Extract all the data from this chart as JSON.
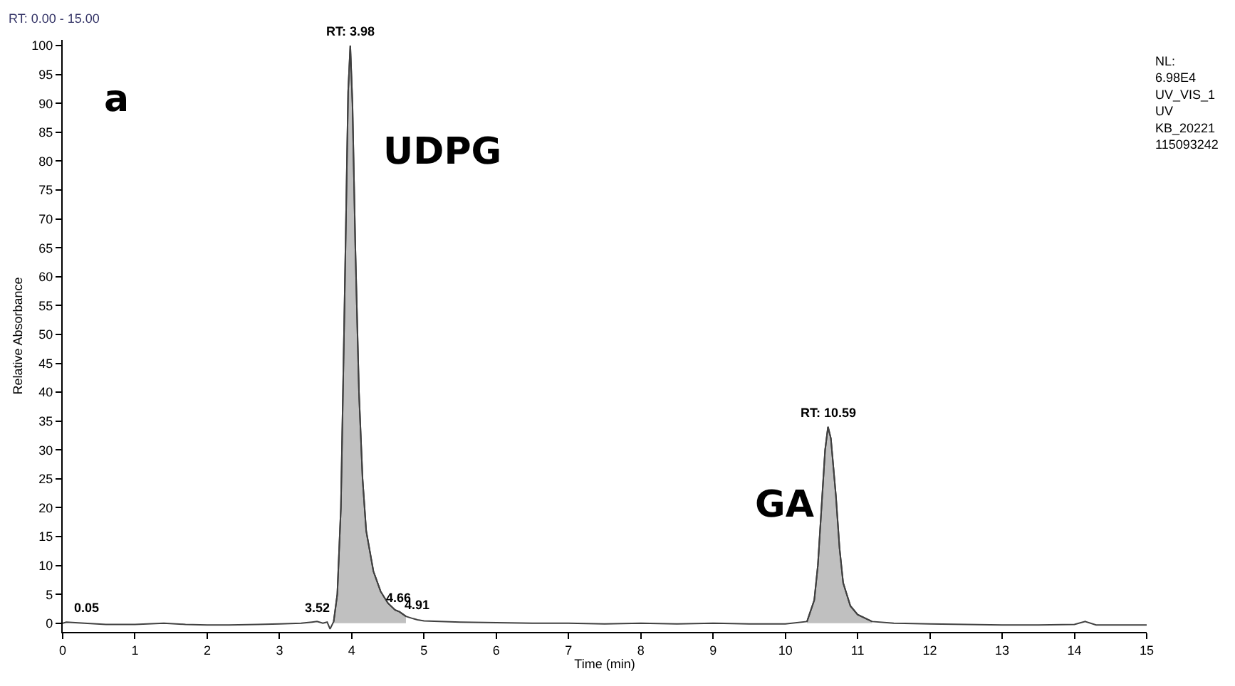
{
  "chart_data": {
    "type": "line",
    "xlabel": "Time (min)",
    "ylabel": "Relative Absorbance",
    "xlim": [
      0,
      15
    ],
    "ylim": [
      -1.5,
      101
    ],
    "xticks": [
      0,
      1,
      2,
      3,
      4,
      5,
      6,
      7,
      8,
      9,
      10,
      11,
      12,
      13,
      14,
      15
    ],
    "yticks": [
      0,
      5,
      10,
      15,
      20,
      25,
      30,
      35,
      40,
      45,
      50,
      55,
      60,
      65,
      70,
      75,
      80,
      85,
      90,
      95,
      100
    ],
    "series": [
      {
        "color": "#404040",
        "x": [
          0,
          0.05,
          0.3,
          0.6,
          1.0,
          1.4,
          1.7,
          2.0,
          2.3,
          2.7,
          3.0,
          3.3,
          3.45,
          3.52,
          3.6,
          3.66,
          3.7,
          3.75,
          3.8,
          3.85,
          3.9,
          3.95,
          3.98,
          4.01,
          4.05,
          4.1,
          4.15,
          4.2,
          4.3,
          4.4,
          4.5,
          4.6,
          4.66,
          4.75,
          4.85,
          4.91,
          5.0,
          5.5,
          6.0,
          6.5,
          7.0,
          7.5,
          8.0,
          8.5,
          9.0,
          9.5,
          10.0,
          10.3,
          10.4,
          10.45,
          10.5,
          10.55,
          10.59,
          10.63,
          10.7,
          10.75,
          10.8,
          10.9,
          11.0,
          11.2,
          11.5,
          12.0,
          12.5,
          13.0,
          13.5,
          14.0,
          14.15,
          14.3,
          15.0
        ],
        "values": [
          0,
          0.2,
          0,
          -0.2,
          -0.2,
          0,
          -0.2,
          -0.3,
          -0.3,
          -0.2,
          -0.1,
          0,
          0.2,
          0.3,
          0,
          0.2,
          -1.0,
          0.3,
          5,
          20,
          55,
          92,
          100,
          90,
          65,
          40,
          25,
          16,
          9,
          5.5,
          3.5,
          2.3,
          2,
          1.2,
          0.8,
          0.6,
          0.4,
          0.2,
          0.1,
          0,
          0,
          -0.1,
          0,
          -0.1,
          0,
          -0.1,
          -0.1,
          0.3,
          4,
          10,
          20,
          30,
          34,
          32,
          22,
          13,
          7,
          3,
          1.5,
          0.3,
          0,
          -0.1,
          -0.2,
          -0.3,
          -0.3,
          -0.2,
          0.3,
          -0.3,
          -0.3
        ]
      },
      {
        "type": "area",
        "color": "#c0c0c0",
        "x": [
          3.75,
          3.8,
          3.85,
          3.9,
          3.95,
          3.98,
          4.01,
          4.05,
          4.1,
          4.15,
          4.2,
          4.3,
          4.4,
          4.5,
          4.6,
          4.66,
          4.75
        ],
        "values": [
          0.3,
          5,
          20,
          55,
          92,
          100,
          90,
          65,
          40,
          25,
          16,
          9,
          5.5,
          3.5,
          2.3,
          2,
          1.2
        ]
      },
      {
        "type": "area",
        "color": "#c0c0c0",
        "x": [
          10.3,
          10.4,
          10.45,
          10.5,
          10.55,
          10.59,
          10.63,
          10.7,
          10.75,
          10.8,
          10.9,
          11.0,
          11.2
        ],
        "values": [
          0.3,
          4,
          10,
          20,
          30,
          34,
          32,
          22,
          13,
          7,
          3,
          1.5,
          0.3
        ]
      }
    ],
    "annotations": [
      {
        "text": "RT: 3.98",
        "x": 3.98,
        "y": 100
      },
      {
        "text": "RT: 10.59",
        "x": 10.59,
        "y": 34
      },
      {
        "text": "0.05",
        "x": 0.05,
        "y": 0.2
      },
      {
        "text": "3.52",
        "x": 3.52,
        "y": 0.3
      },
      {
        "text": "4.66",
        "x": 4.66,
        "y": 2
      },
      {
        "text": "4.91",
        "x": 4.91,
        "y": 0.6
      },
      "a",
      "UDPG",
      "GA",
      "RT: 0.00 - 15.00",
      "NL:\n6.98E4\nUV_VIS_1\nUV\nKB_20221\n115093242"
    ]
  }
}
